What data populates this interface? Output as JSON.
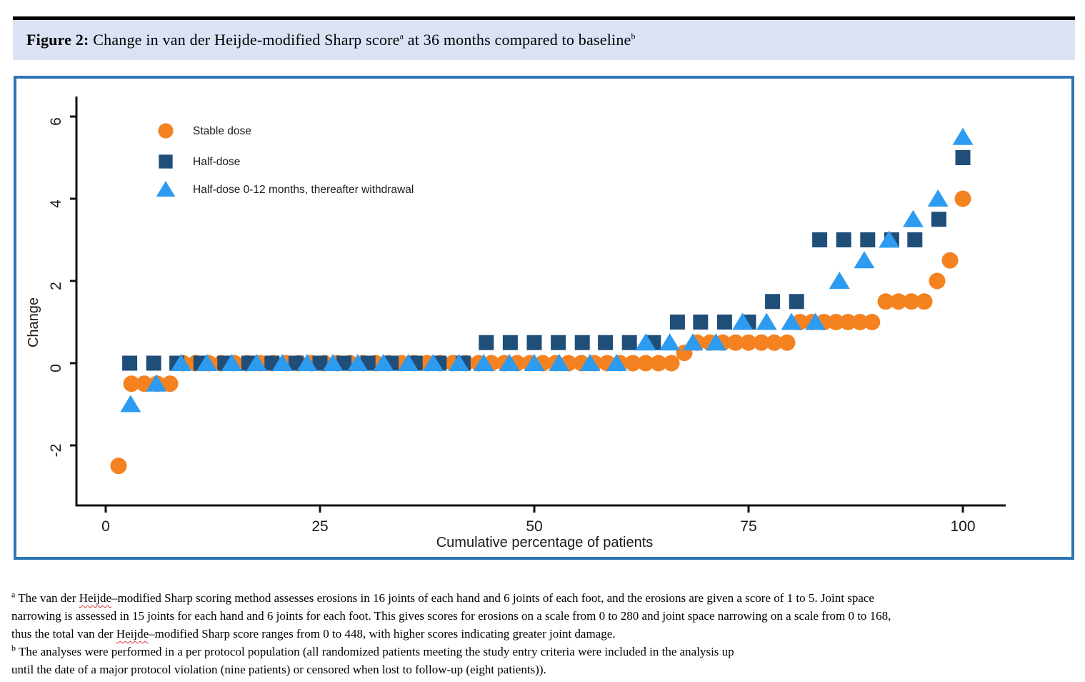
{
  "figure": {
    "title_segments": [
      {
        "t": "Figure 2:",
        "s": "b"
      },
      {
        "t": " Change in van der Heijde-modified Sharp score",
        "s": ""
      },
      {
        "t": "a",
        "s": "sup"
      },
      {
        "t": " at 36 months compared to baseline",
        "s": ""
      },
      {
        "t": "b",
        "s": "sup"
      }
    ]
  },
  "colors": {
    "banner_bg": "#dbe2f4",
    "box_border": "#2e75b6",
    "axis": "#111111",
    "stable_dose": "#f58220",
    "half_dose": "#1f4e79",
    "half_dose_withdrawal": "#2d9bf0",
    "spellcheck_red": "#e03030"
  },
  "chart_data": {
    "type": "scatter",
    "title": "",
    "xlabel": "Cumulative percentage of patients",
    "ylabel": "Change",
    "xlim": [
      -2,
      105
    ],
    "ylim": [
      -3.5,
      6.8
    ],
    "x_ticks": [
      0,
      25,
      50,
      75,
      100
    ],
    "y_ticks": [
      -2,
      0,
      2,
      4,
      6
    ],
    "grid": false,
    "legend_position": "top-left",
    "series": [
      {
        "name": "Stable dose",
        "marker": "circle",
        "color": "#f58220",
        "points": [
          [
            1.5,
            -2.5
          ],
          [
            3,
            -0.5
          ],
          [
            4.5,
            -0.5
          ],
          [
            6,
            -0.5
          ],
          [
            7.5,
            -0.5
          ],
          [
            9,
            0
          ],
          [
            10.5,
            0
          ],
          [
            12,
            0
          ],
          [
            13.5,
            0
          ],
          [
            15,
            0
          ],
          [
            16.5,
            0
          ],
          [
            18,
            0
          ],
          [
            19.5,
            0
          ],
          [
            21,
            0
          ],
          [
            22.5,
            0
          ],
          [
            24,
            0
          ],
          [
            25.5,
            0
          ],
          [
            27,
            0
          ],
          [
            28.5,
            0
          ],
          [
            30,
            0
          ],
          [
            31.5,
            0
          ],
          [
            33,
            0
          ],
          [
            34.5,
            0
          ],
          [
            36,
            0
          ],
          [
            37.5,
            0
          ],
          [
            39,
            0
          ],
          [
            40.5,
            0
          ],
          [
            42,
            0
          ],
          [
            43.5,
            0
          ],
          [
            45,
            0
          ],
          [
            46.5,
            0
          ],
          [
            48,
            0
          ],
          [
            49.5,
            0
          ],
          [
            51,
            0
          ],
          [
            52.5,
            0
          ],
          [
            54,
            0
          ],
          [
            55.5,
            0
          ],
          [
            57,
            0
          ],
          [
            58.5,
            0
          ],
          [
            60,
            0
          ],
          [
            61.5,
            0
          ],
          [
            63,
            0
          ],
          [
            64.5,
            0
          ],
          [
            66,
            0
          ],
          [
            67.5,
            0.25
          ],
          [
            69,
            0.5
          ],
          [
            70.5,
            0.5
          ],
          [
            72,
            0.5
          ],
          [
            73.5,
            0.5
          ],
          [
            75,
            0.5
          ],
          [
            76.5,
            0.5
          ],
          [
            78,
            0.5
          ],
          [
            79.5,
            0.5
          ],
          [
            81,
            1
          ],
          [
            82.4,
            1
          ],
          [
            83.8,
            1
          ],
          [
            85.2,
            1
          ],
          [
            86.6,
            1
          ],
          [
            88,
            1
          ],
          [
            89.4,
            1
          ],
          [
            91,
            1.5
          ],
          [
            92.5,
            1.5
          ],
          [
            94,
            1.5
          ],
          [
            95.5,
            1.5
          ],
          [
            97,
            2
          ],
          [
            98.5,
            2.5
          ],
          [
            100,
            4
          ]
        ]
      },
      {
        "name": "Half-dose",
        "marker": "square",
        "color": "#1f4e79",
        "points": [
          [
            2.8,
            0
          ],
          [
            5.6,
            0
          ],
          [
            8.3,
            0
          ],
          [
            11.1,
            0
          ],
          [
            13.9,
            0
          ],
          [
            16.7,
            0
          ],
          [
            19.4,
            0
          ],
          [
            22.2,
            0
          ],
          [
            25,
            0
          ],
          [
            27.8,
            0
          ],
          [
            30.6,
            0
          ],
          [
            33.3,
            0
          ],
          [
            36.1,
            0
          ],
          [
            38.9,
            0
          ],
          [
            41.7,
            0
          ],
          [
            44.4,
            0.5
          ],
          [
            47.2,
            0.5
          ],
          [
            50,
            0.5
          ],
          [
            52.8,
            0.5
          ],
          [
            55.6,
            0.5
          ],
          [
            58.3,
            0.5
          ],
          [
            61.1,
            0.5
          ],
          [
            63.9,
            0.5
          ],
          [
            66.7,
            1
          ],
          [
            69.4,
            1
          ],
          [
            72.2,
            1
          ],
          [
            75,
            1
          ],
          [
            77.8,
            1.5
          ],
          [
            80.6,
            1.5
          ],
          [
            83.3,
            3
          ],
          [
            86.1,
            3
          ],
          [
            88.9,
            3
          ],
          [
            91.7,
            3
          ],
          [
            94.4,
            3
          ],
          [
            97.2,
            3.5
          ],
          [
            100,
            5
          ]
        ]
      },
      {
        "name": "Half-dose 0-12 months, thereafter withdrawal",
        "marker": "triangle",
        "color": "#2d9bf0",
        "points": [
          [
            2.9,
            -1
          ],
          [
            5.9,
            -0.5
          ],
          [
            8.8,
            0
          ],
          [
            11.8,
            0
          ],
          [
            14.7,
            0
          ],
          [
            17.6,
            0
          ],
          [
            20.6,
            0
          ],
          [
            23.5,
            0
          ],
          [
            26.5,
            0
          ],
          [
            29.4,
            0
          ],
          [
            32.4,
            0
          ],
          [
            35.3,
            0
          ],
          [
            38.2,
            0
          ],
          [
            41.2,
            0
          ],
          [
            44.1,
            0
          ],
          [
            47.1,
            0
          ],
          [
            50,
            0
          ],
          [
            52.9,
            0
          ],
          [
            56.5,
            0
          ],
          [
            59.6,
            0
          ],
          [
            63,
            0.5
          ],
          [
            65.8,
            0.5
          ],
          [
            68.5,
            0.5
          ],
          [
            71.2,
            0.5
          ],
          [
            74.3,
            1
          ],
          [
            77.1,
            1
          ],
          [
            80,
            1
          ],
          [
            82.8,
            1
          ],
          [
            85.6,
            2
          ],
          [
            88.5,
            2.5
          ],
          [
            91.4,
            3
          ],
          [
            94.2,
            3.5
          ],
          [
            97.1,
            4
          ],
          [
            100,
            5.5
          ]
        ]
      }
    ]
  },
  "footnotes": {
    "lines": [
      [
        {
          "t": "a",
          "s": "sup"
        },
        {
          "t": " The van der ",
          "s": ""
        },
        {
          "t": "Heijde",
          "s": "wavy"
        },
        {
          "t": "–modified Sharp scoring method assesses erosions in 16 joints of each hand and 6 joints of each foot, and the erosions are given a score of 1 to 5. Joint space",
          "s": ""
        }
      ],
      [
        {
          "t": "narrowing  is assessed in 15 joints for each hand and 6 joints for each foot. This  gives scores for erosions on a scale from 0 to 280 and joint space narrowing on a scale from 0 to 168,",
          "s": ""
        }
      ],
      [
        {
          "t": "thus the total van der ",
          "s": ""
        },
        {
          "t": "Heijde",
          "s": "wavy"
        },
        {
          "t": "–modified Sharp score ranges from 0 to 448, with higher scores indicating greater joint damage.",
          "s": ""
        }
      ],
      [
        {
          "t": "b",
          "s": "sup"
        },
        {
          "t": " The analyses were performed in a per protocol population (all randomized patients meeting the study entry criteria were included in the analysis up",
          "s": ""
        }
      ],
      [
        {
          "t": "until the date of a major protocol violation (nine patients) or censored when lost to follow-up (eight patients)).",
          "s": ""
        }
      ]
    ]
  }
}
